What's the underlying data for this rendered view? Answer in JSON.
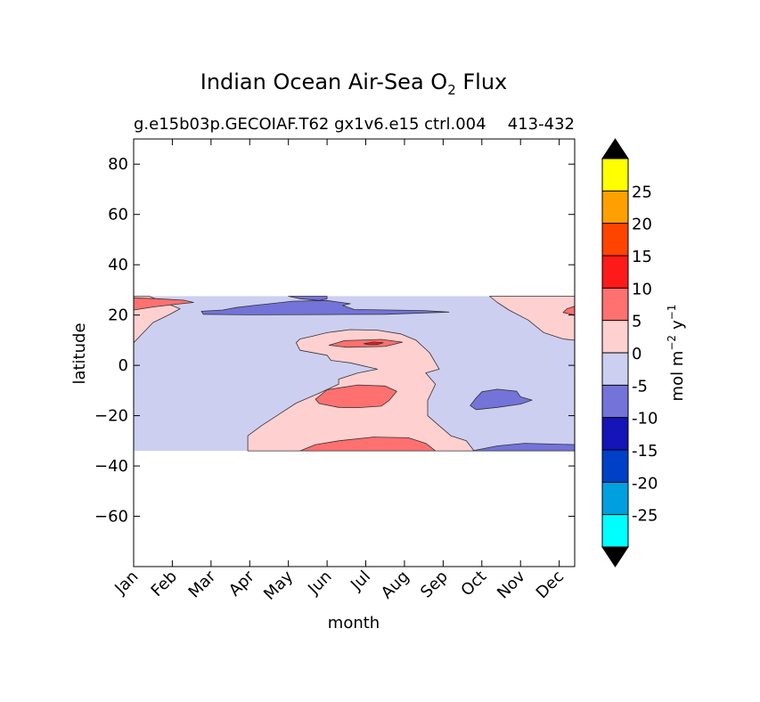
{
  "chart_data": {
    "type": "contour",
    "title": "Indian Ocean Air-Sea O",
    "title_subscript": "2",
    "title_suffix": " Flux",
    "subtitle": "g.e15b03p.GECOIAF.T62 gx1v6.e15 ctrl.004",
    "subtitle_right": "413-432",
    "xlabel": "month",
    "ylabel": "latitude",
    "x_categories": [
      "Jan",
      "Feb",
      "Mar",
      "Apr",
      "May",
      "Jun",
      "Jul",
      "Aug",
      "Sep",
      "Oct",
      "Nov",
      "Dec"
    ],
    "xlim": [
      0,
      11.4
    ],
    "ylim": [
      -80,
      90
    ],
    "y_ticks": [
      80,
      60,
      40,
      20,
      0,
      -20,
      -40,
      -60
    ],
    "y_tick_labels": [
      "80",
      "60",
      "40",
      "20",
      "0",
      "−20",
      "−40",
      "−60"
    ],
    "data_extent_lat": [
      -34,
      27.5
    ],
    "background_level_color": "#cccff0",
    "regions": [
      {
        "level": "0 to 5",
        "color": "#ffd0d0",
        "points": [
          [
            0,
            27.5
          ],
          [
            0.4,
            27.5
          ],
          [
            0.8,
            25
          ],
          [
            1.2,
            22.5
          ],
          [
            0.9,
            20
          ],
          [
            0.5,
            17
          ],
          [
            0.25,
            13
          ],
          [
            0,
            9
          ]
        ]
      },
      {
        "level": "0 to 5",
        "color": "#ffd0d0",
        "points": [
          [
            9.2,
            27.5
          ],
          [
            11.4,
            27.5
          ],
          [
            11.4,
            10
          ],
          [
            11.1,
            10.5
          ],
          [
            10.6,
            13
          ],
          [
            10.2,
            18
          ],
          [
            9.7,
            22
          ],
          [
            9.4,
            25
          ]
        ]
      },
      {
        "level": "0 to 5",
        "color": "#ffd0d0",
        "points": [
          [
            4.3,
            10.5
          ],
          [
            4.6,
            11.5
          ],
          [
            5.0,
            13
          ],
          [
            5.6,
            14.2
          ],
          [
            6.3,
            14
          ],
          [
            6.9,
            12.5
          ],
          [
            7.3,
            10
          ],
          [
            7.65,
            5
          ],
          [
            7.9,
            -1.5
          ],
          [
            7.55,
            -3
          ],
          [
            7.8,
            -7.5
          ],
          [
            7.6,
            -14
          ],
          [
            7.6,
            -20
          ],
          [
            7.9,
            -24
          ],
          [
            8.2,
            -28
          ],
          [
            8.6,
            -30
          ],
          [
            8.8,
            -34
          ],
          [
            2.95,
            -34
          ],
          [
            2.95,
            -28
          ],
          [
            3.3,
            -24
          ],
          [
            3.8,
            -19
          ],
          [
            4.2,
            -15
          ],
          [
            4.8,
            -11
          ],
          [
            5.3,
            -7.5
          ],
          [
            5.3,
            -5.5
          ],
          [
            5.8,
            -3
          ],
          [
            6.3,
            -1.5
          ],
          [
            5.6,
            1
          ],
          [
            5.1,
            2
          ],
          [
            5.0,
            4
          ],
          [
            4.3,
            6
          ],
          [
            4.2,
            9
          ]
        ]
      },
      {
        "level": "-5 to 0",
        "color": "#7373d9",
        "points": [
          [
            1.75,
            21.5
          ],
          [
            2.3,
            22
          ],
          [
            2.65,
            23
          ],
          [
            3.1,
            23.8
          ],
          [
            3.7,
            24.8
          ],
          [
            4.1,
            25.5
          ],
          [
            5.0,
            25.8
          ],
          [
            5.6,
            24.5
          ],
          [
            5.4,
            23.8
          ],
          [
            5.7,
            22.2
          ],
          [
            7.5,
            21.8
          ],
          [
            8.15,
            21.2
          ],
          [
            6.5,
            20.3
          ],
          [
            5.0,
            20.2
          ],
          [
            3.0,
            20.1
          ],
          [
            1.8,
            20.3
          ]
        ]
      },
      {
        "level": "-5 to 0",
        "color": "#7373d9",
        "points": [
          [
            4.0,
            27.5
          ],
          [
            4.3,
            26.5
          ],
          [
            4.8,
            25.8
          ],
          [
            5.0,
            26.5
          ],
          [
            5.0,
            27.5
          ]
        ]
      },
      {
        "level": "-5 to 0",
        "color": "#7373d9",
        "points": [
          [
            8.7,
            -16
          ],
          [
            8.85,
            -13
          ],
          [
            9.0,
            -10.5
          ],
          [
            9.4,
            -9.5
          ],
          [
            9.9,
            -10.3
          ],
          [
            10.0,
            -12.5
          ],
          [
            10.3,
            -13.8
          ],
          [
            10.0,
            -15.4
          ],
          [
            9.4,
            -16.7
          ],
          [
            8.85,
            -17.6
          ]
        ]
      },
      {
        "level": "-5 to 0",
        "color": "#7373d9",
        "points": [
          [
            8.75,
            -34
          ],
          [
            9.4,
            -32
          ],
          [
            10.1,
            -31
          ],
          [
            11.4,
            -31.5
          ],
          [
            11.4,
            -34
          ]
        ]
      },
      {
        "level": "5 to 10",
        "color": "#ff7070",
        "points": [
          [
            0,
            22
          ],
          [
            0.5,
            23.2
          ],
          [
            1.1,
            24.3
          ],
          [
            1.55,
            25
          ],
          [
            1.3,
            25.9
          ],
          [
            0.6,
            26.5
          ],
          [
            0,
            26.9
          ]
        ]
      },
      {
        "level": "5 to 10",
        "color": "#ff7070",
        "points": [
          [
            11.1,
            21
          ],
          [
            11.4,
            20
          ],
          [
            11.4,
            23.5
          ],
          [
            11.2,
            22.5
          ]
        ]
      },
      {
        "level": "5 to 10",
        "color": "#ff7070",
        "points": [
          [
            5.05,
            8
          ],
          [
            5.45,
            9.8
          ],
          [
            6.4,
            10.3
          ],
          [
            6.95,
            9.2
          ],
          [
            6.5,
            7.5
          ],
          [
            5.9,
            7.3
          ],
          [
            5.5,
            7.2
          ]
        ]
      },
      {
        "level": "5 to 10",
        "color": "#ff7070",
        "points": [
          [
            4.7,
            -13.5
          ],
          [
            5.0,
            -9.7
          ],
          [
            5.8,
            -7.8
          ],
          [
            6.5,
            -8.2
          ],
          [
            6.8,
            -10.3
          ],
          [
            6.6,
            -14
          ],
          [
            6.4,
            -16.2
          ],
          [
            5.8,
            -16.8
          ],
          [
            5.3,
            -16.7
          ],
          [
            4.8,
            -15.2
          ]
        ]
      },
      {
        "level": "5 to 10",
        "color": "#ff7070",
        "points": [
          [
            4.3,
            -34
          ],
          [
            4.7,
            -31.5
          ],
          [
            5.3,
            -30
          ],
          [
            6.2,
            -28.5
          ],
          [
            7.1,
            -28.8
          ],
          [
            7.55,
            -31
          ],
          [
            7.8,
            -34
          ]
        ]
      },
      {
        "level": "10 to 15",
        "color": "#ff1a1a",
        "points": [
          [
            5.95,
            8.6
          ],
          [
            6.2,
            9.3
          ],
          [
            6.45,
            9.0
          ],
          [
            6.3,
            8.3
          ],
          [
            6.1,
            8.2
          ]
        ]
      }
    ],
    "colorbar": {
      "label": "mol m",
      "label_exp1": "−2",
      "label_unit2": "y",
      "label_exp2": "−1",
      "levels": [
        {
          "range": "<-30",
          "color": "#000000"
        },
        {
          "range": "-30 to -25",
          "color": "#00ffff"
        },
        {
          "range": "-25 to -20",
          "color": "#00a0e0"
        },
        {
          "range": "-20 to -15",
          "color": "#0040c8"
        },
        {
          "range": "-15 to -10",
          "color": "#1414b8"
        },
        {
          "range": "-10 to -5",
          "color": "#7373d9"
        },
        {
          "range": "-5 to 0",
          "color": "#cccff0"
        },
        {
          "range": "0 to 5",
          "color": "#ffd0d0"
        },
        {
          "range": "5 to 10",
          "color": "#ff7070"
        },
        {
          "range": "10 to 15",
          "color": "#ff1a1a"
        },
        {
          "range": "15 to 20",
          "color": "#ff4400"
        },
        {
          "range": "20 to 25",
          "color": "#ffa000"
        },
        {
          "range": "25 to 30",
          "color": "#ffff00"
        },
        {
          "range": ">30",
          "color": "#000000"
        }
      ],
      "tick_labels": [
        "-25",
        "-20",
        "-15",
        "-10",
        "-5",
        "0",
        "5",
        "10",
        "15",
        "20",
        "25"
      ]
    }
  }
}
